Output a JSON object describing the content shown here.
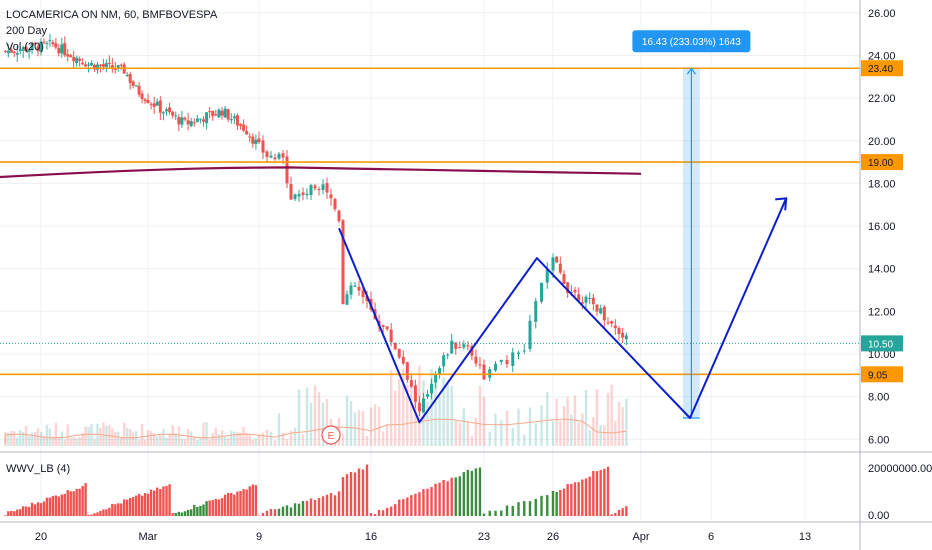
{
  "legend": {
    "symbol_line": "LOCAMERICA ON NM, 60, BMFBOVESPA",
    "ma_line": "200 Day",
    "vol_line": "Vol (20)",
    "osc_line": "WWV_LB (4)"
  },
  "colors": {
    "up": "#26a69a",
    "down": "#ef5350",
    "level": "#ff9800",
    "ma": "#880e4f",
    "pattern": "#0d1ecc",
    "measure": "#2196f3",
    "grid": "#eef0f3",
    "volume_ma": "#f7a98a",
    "osc_up": "#388e3c",
    "osc_down": "#ef5350"
  },
  "chart_data": {
    "type": "candlestick",
    "title": "LOCAMERICA ON NM, 60, BMFBOVESPA",
    "ylim": [
      5.5,
      26.6
    ],
    "y_ticks": [
      "26.00",
      "24.00",
      "22.00",
      "20.00",
      "18.00",
      "16.00",
      "14.00",
      "12.00",
      "10.00",
      "8.00",
      "6.00"
    ],
    "x_ticks": [
      "20",
      "Mar",
      "9",
      "16",
      "23",
      "26",
      "Apr",
      "6",
      "13"
    ],
    "price_levels": [
      {
        "label": "23.40",
        "value": 23.4
      },
      {
        "label": "19.00",
        "value": 19.0
      },
      {
        "label": "9.05",
        "value": 9.05
      }
    ],
    "last_price": {
      "label": "10.50",
      "value": 10.5
    },
    "ma_200": {
      "name": "200 Day",
      "start": 18.3,
      "peak": 18.75,
      "end": 18.45
    },
    "pattern_points": [
      {
        "date": "Mar 14",
        "price": 15.9
      },
      {
        "date": "Mar 19",
        "price": 6.8
      },
      {
        "date": "Mar 25",
        "price": 14.5
      },
      {
        "date": "Apr 3",
        "price": 7.0
      },
      {
        "date": "Apr 10",
        "price": 17.3
      }
    ],
    "measure": {
      "label": "16.43 (233.03%) 1643",
      "from": 7.0,
      "to": 23.4
    },
    "event_marker": "E",
    "oscillator": {
      "name": "WWV_LB (4)",
      "y_ticks": [
        "20000000.00",
        "0.00"
      ]
    }
  }
}
